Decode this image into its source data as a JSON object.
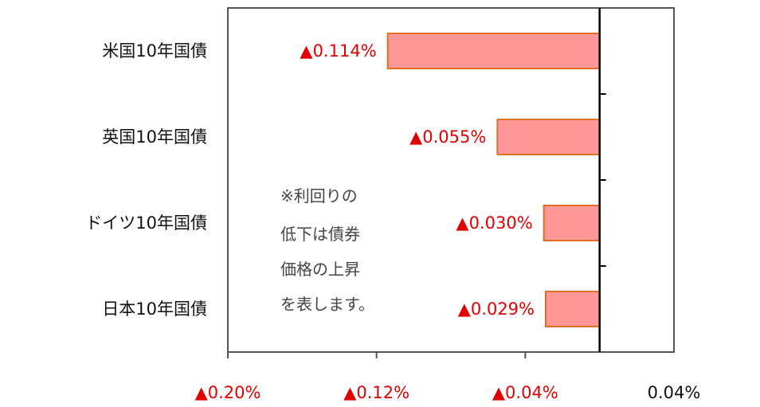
{
  "chart_data": {
    "type": "bar",
    "orientation": "horizontal",
    "categories": [
      "米国10年国債",
      "英国10年国債",
      "ドイツ10年国債",
      "日本10年国債"
    ],
    "values": [
      -0.114,
      -0.055,
      -0.03,
      -0.029
    ],
    "data_labels": [
      "▲0.114%",
      "▲0.055%",
      "▲0.030%",
      "▲0.029%"
    ],
    "xlim": [
      -0.2,
      0.04
    ],
    "x_ticks": [
      -0.2,
      -0.12,
      -0.04,
      0.04
    ],
    "x_tick_labels": [
      "▲0.20%",
      "▲0.12%",
      "▲0.04%",
      "0.04%"
    ],
    "bar_fill": "#ff9999",
    "bar_stroke": "#e07020",
    "label_color": "#e00000",
    "annotation": [
      "※利回りの",
      "低下は債券",
      "価格の上昇",
      "を表します。"
    ]
  }
}
